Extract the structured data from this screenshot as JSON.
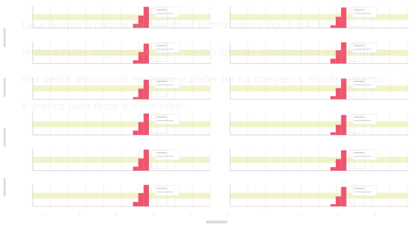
{
  "figure": {
    "title": "",
    "caption_text": "Luca do que o cotatio da guante oi ilustrando na Fig. 3 e 4. Isto tenho o fazer ninguém exceto o mecanismo de escoamento e a simulação dos dados deixa para melhorar e poder ter na imagem o monitoramento e gráfico para fazer o o um nível."
  },
  "chart_data": [
    {
      "type": "bar",
      "panel_label": "",
      "xlabel": "",
      "ylabel": "",
      "xlim": [
        0,
        10
      ],
      "ylim": [
        0,
        1
      ],
      "grid": true,
      "band": [
        0.35,
        0.62
      ],
      "series": [
        {
          "values": [
            {
              "x": 5.65,
              "w": 0.3,
              "y": 0.18
            },
            {
              "x": 5.95,
              "w": 0.3,
              "y": 0.55
            },
            {
              "x": 6.25,
              "w": 0.3,
              "y": 0.95
            }
          ]
        }
      ],
      "legend": [
        "",
        ""
      ]
    },
    {
      "type": "bar",
      "panel_label": "",
      "xlabel": "",
      "ylabel": "",
      "xlim": [
        0,
        10
      ],
      "ylim": [
        0,
        1
      ],
      "grid": true,
      "band": [
        0.35,
        0.62
      ],
      "series": [
        {
          "values": [
            {
              "x": 5.65,
              "w": 0.3,
              "y": 0.12
            },
            {
              "x": 5.95,
              "w": 0.3,
              "y": 0.5
            },
            {
              "x": 6.25,
              "w": 0.3,
              "y": 0.92
            }
          ]
        }
      ],
      "legend": [
        "",
        ""
      ]
    },
    {
      "type": "bar",
      "panel_label": "",
      "xlabel": "",
      "ylabel": "",
      "xlim": [
        0,
        10
      ],
      "ylim": [
        0,
        1
      ],
      "grid": true,
      "band": [
        0.35,
        0.62
      ],
      "series": [
        {
          "values": [
            {
              "x": 5.65,
              "w": 0.3,
              "y": 0.15
            },
            {
              "x": 5.95,
              "w": 0.3,
              "y": 0.52
            },
            {
              "x": 6.25,
              "w": 0.3,
              "y": 0.9
            }
          ]
        }
      ],
      "legend": [
        "",
        ""
      ]
    },
    {
      "type": "bar",
      "panel_label": "",
      "xlabel": "",
      "ylabel": "",
      "xlim": [
        0,
        10
      ],
      "ylim": [
        0,
        1
      ],
      "grid": true,
      "band": [
        0.35,
        0.62
      ],
      "series": [
        {
          "values": [
            {
              "x": 5.65,
              "w": 0.3,
              "y": 0.22
            },
            {
              "x": 5.95,
              "w": 0.3,
              "y": 0.6
            },
            {
              "x": 6.25,
              "w": 0.3,
              "y": 0.96
            }
          ]
        }
      ],
      "legend": [
        "",
        ""
      ]
    },
    {
      "type": "bar",
      "panel_label": "",
      "xlabel": "",
      "ylabel": "",
      "xlim": [
        0,
        10
      ],
      "ylim": [
        0,
        1
      ],
      "grid": true,
      "band": [
        0.35,
        0.62
      ],
      "series": [
        {
          "values": [
            {
              "x": 5.65,
              "w": 0.3,
              "y": 0.1
            },
            {
              "x": 5.95,
              "w": 0.3,
              "y": 0.48
            },
            {
              "x": 6.25,
              "w": 0.3,
              "y": 0.88
            }
          ]
        }
      ],
      "legend": [
        "",
        ""
      ]
    },
    {
      "type": "bar",
      "panel_label": "",
      "xlabel": "",
      "ylabel": "",
      "xlim": [
        0,
        10
      ],
      "ylim": [
        0,
        1
      ],
      "grid": true,
      "band": [
        0.35,
        0.62
      ],
      "series": [
        {
          "values": [
            {
              "x": 5.65,
              "w": 0.3,
              "y": 0.14
            },
            {
              "x": 5.95,
              "w": 0.3,
              "y": 0.5
            },
            {
              "x": 6.25,
              "w": 0.3,
              "y": 0.93
            }
          ]
        }
      ],
      "legend": [
        "",
        ""
      ]
    },
    {
      "type": "bar",
      "panel_label": "",
      "xlabel": "",
      "ylabel": "",
      "xlim": [
        0,
        10
      ],
      "ylim": [
        0,
        1
      ],
      "grid": true,
      "band": [
        0.35,
        0.62
      ],
      "series": [
        {
          "values": [
            {
              "x": 5.65,
              "w": 0.3,
              "y": 0.2
            },
            {
              "x": 5.95,
              "w": 0.3,
              "y": 0.58
            },
            {
              "x": 6.25,
              "w": 0.3,
              "y": 0.97
            }
          ]
        }
      ],
      "legend": [
        "",
        ""
      ]
    },
    {
      "type": "bar",
      "panel_label": "",
      "xlabel": "",
      "ylabel": "",
      "xlim": [
        0,
        10
      ],
      "ylim": [
        0,
        1
      ],
      "grid": true,
      "band": [
        0.35,
        0.62
      ],
      "series": [
        {
          "values": [
            {
              "x": 5.65,
              "w": 0.3,
              "y": 0.12
            },
            {
              "x": 5.95,
              "w": 0.3,
              "y": 0.46
            },
            {
              "x": 6.25,
              "w": 0.3,
              "y": 0.9
            }
          ]
        }
      ],
      "legend": [
        "",
        ""
      ]
    },
    {
      "type": "bar",
      "panel_label": "",
      "xlabel": "",
      "ylabel": "",
      "xlim": [
        0,
        10
      ],
      "ylim": [
        0,
        1
      ],
      "grid": true,
      "band": [
        0.35,
        0.62
      ],
      "series": [
        {
          "values": [
            {
              "x": 5.65,
              "w": 0.3,
              "y": 0.18
            },
            {
              "x": 5.95,
              "w": 0.3,
              "y": 0.55
            },
            {
              "x": 6.25,
              "w": 0.3,
              "y": 0.95
            }
          ]
        }
      ],
      "legend": [
        "",
        ""
      ]
    },
    {
      "type": "bar",
      "panel_label": "",
      "xlabel": "",
      "ylabel": "",
      "xlim": [
        0,
        10
      ],
      "ylim": [
        0,
        1
      ],
      "grid": true,
      "band": [
        0.35,
        0.62
      ],
      "series": [
        {
          "values": [
            {
              "x": 5.65,
              "w": 0.3,
              "y": 0.16
            },
            {
              "x": 5.95,
              "w": 0.3,
              "y": 0.52
            },
            {
              "x": 6.25,
              "w": 0.3,
              "y": 0.92
            }
          ]
        }
      ],
      "legend": [
        "",
        ""
      ]
    },
    {
      "type": "bar",
      "panel_label": "",
      "xlabel": "",
      "ylabel": "",
      "xlim": [
        0,
        10
      ],
      "ylim": [
        0,
        1
      ],
      "grid": true,
      "band": [
        0.35,
        0.62
      ],
      "series": [
        {
          "values": [
            {
              "x": 5.65,
              "w": 0.3,
              "y": 0.2
            },
            {
              "x": 5.95,
              "w": 0.3,
              "y": 0.6
            },
            {
              "x": 6.25,
              "w": 0.3,
              "y": 0.97
            }
          ]
        }
      ],
      "legend": [
        "",
        ""
      ]
    },
    {
      "type": "bar",
      "panel_label": "",
      "xlabel": "",
      "ylabel": "",
      "xlim": [
        0,
        10
      ],
      "ylim": [
        0,
        1
      ],
      "grid": true,
      "band": [
        0.35,
        0.62
      ],
      "series": [
        {
          "values": [
            {
              "x": 5.65,
              "w": 0.3,
              "y": 0.1
            },
            {
              "x": 5.95,
              "w": 0.3,
              "y": 0.45
            },
            {
              "x": 6.25,
              "w": 0.3,
              "y": 0.88
            }
          ]
        }
      ],
      "legend": [
        "",
        ""
      ]
    }
  ],
  "style": {
    "bar_color": "#ea3f5d",
    "band_color": "#eef0b8",
    "grid_color": "#e3e3e3",
    "axis_color": "#c9c9c9",
    "text_color": "#6e6e6e",
    "faint_text_color": "#bdbdbd"
  }
}
